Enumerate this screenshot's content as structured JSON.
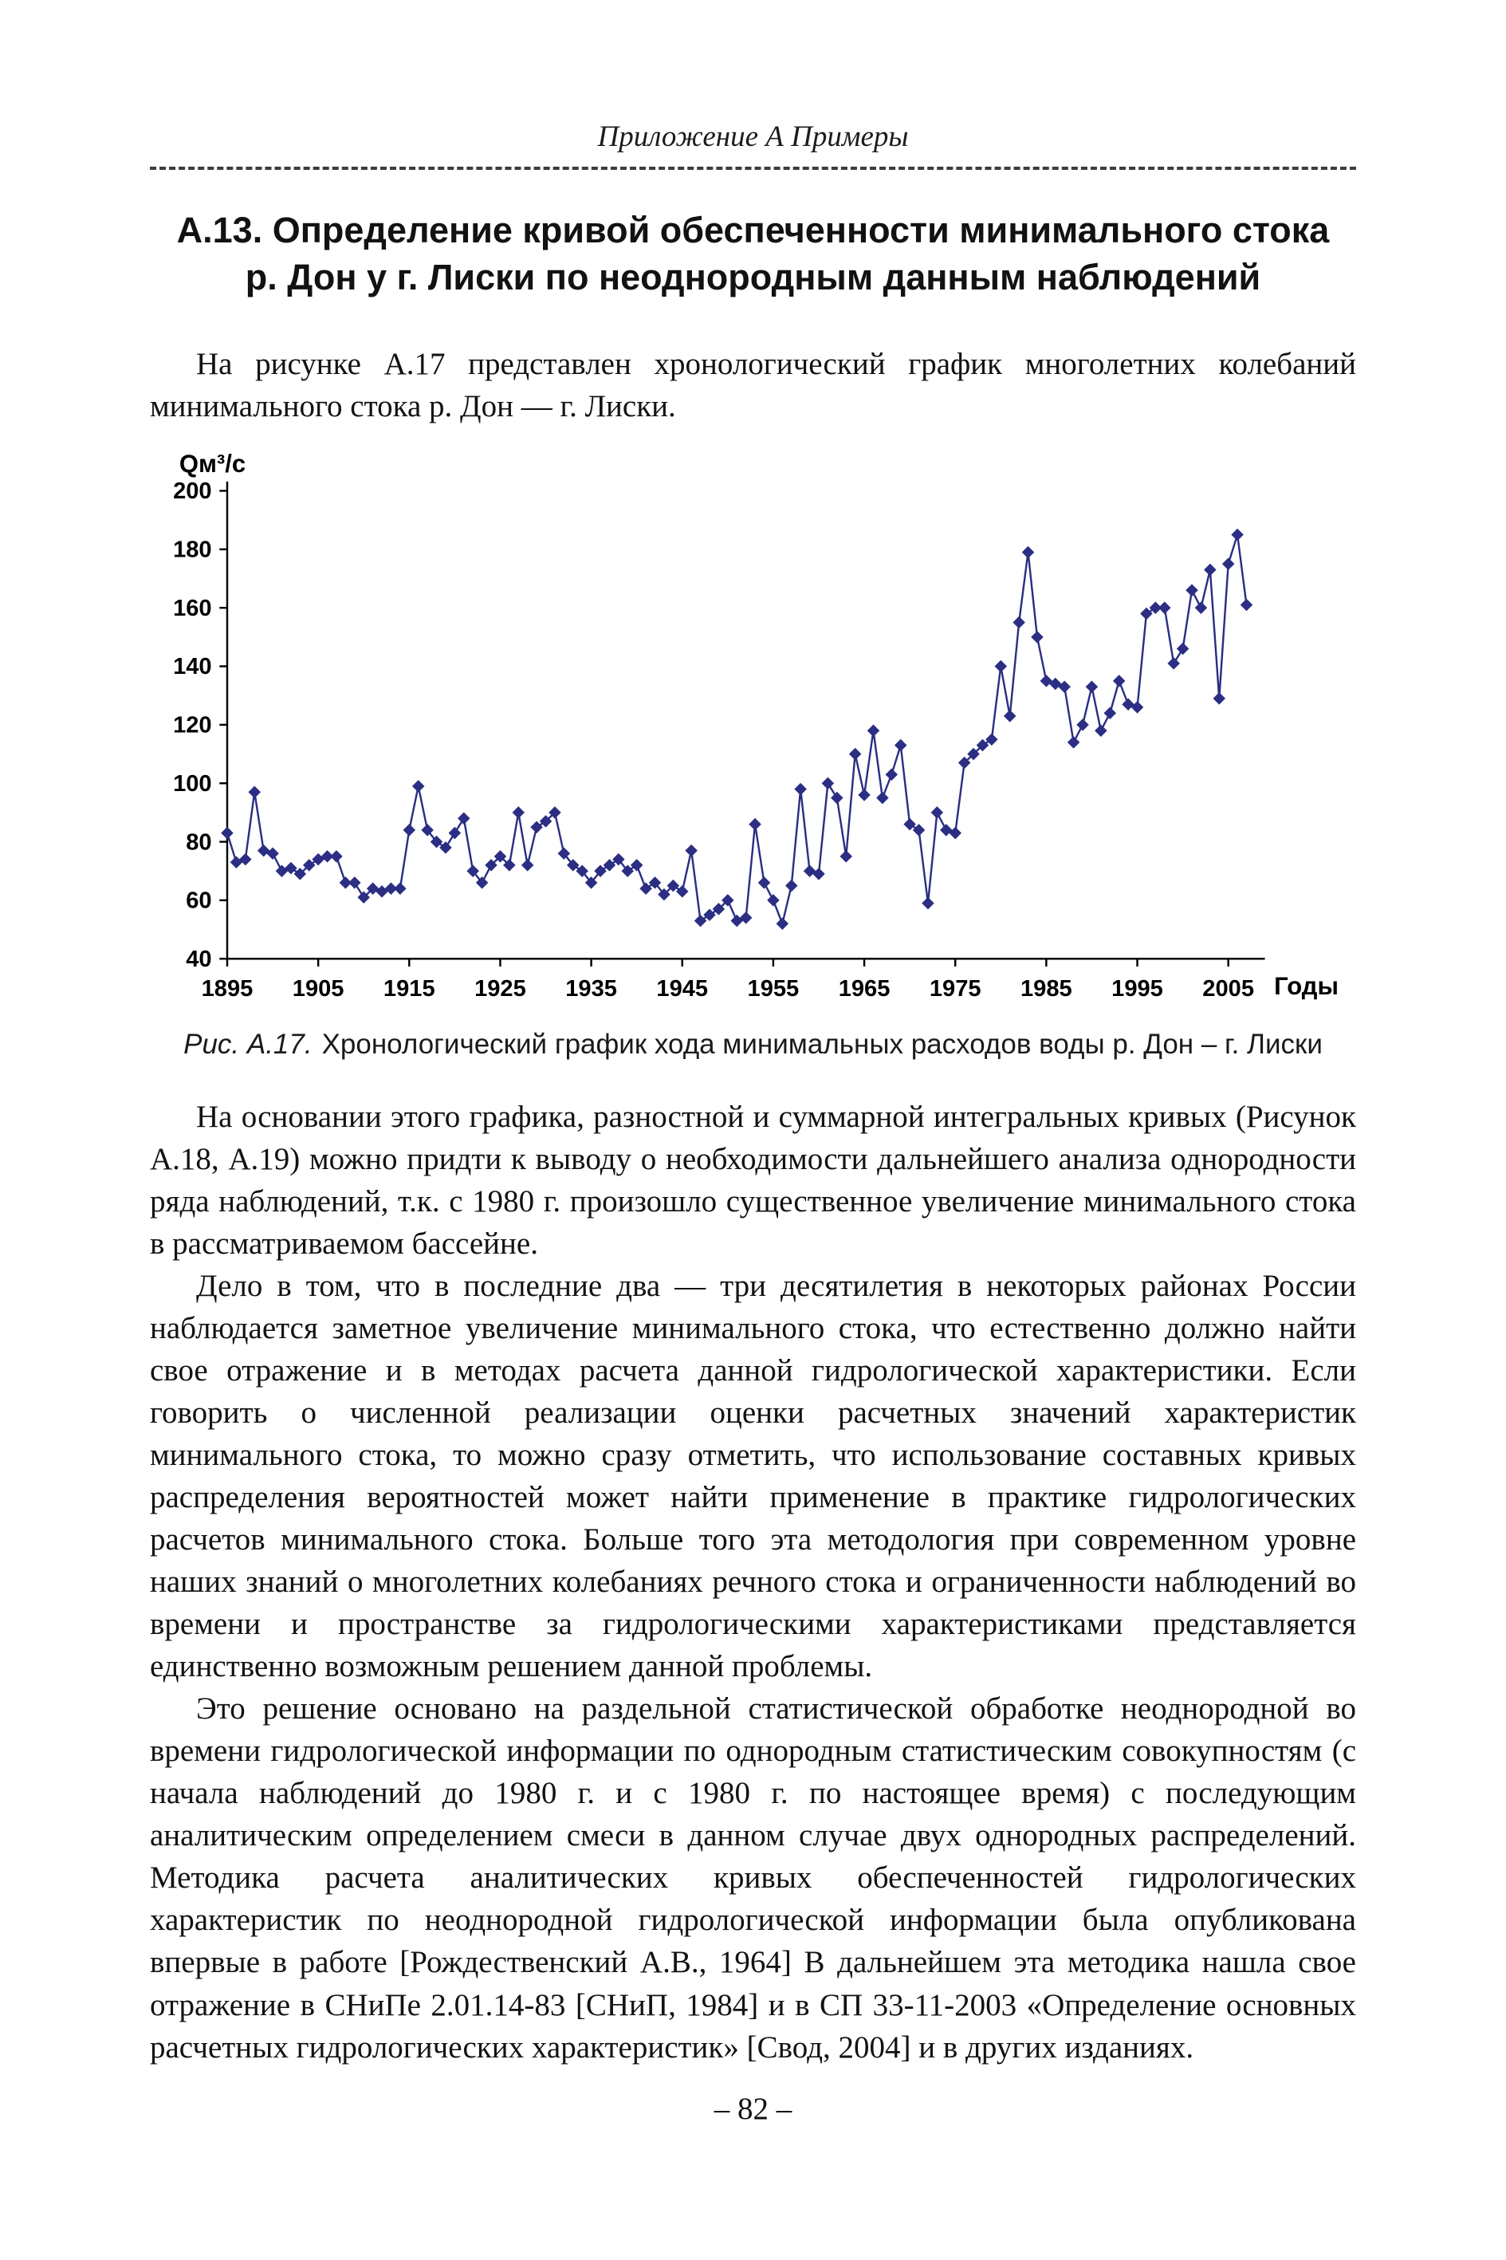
{
  "page": {
    "header": "Приложение А Примеры",
    "title_line1": "А.13. Определение кривой обеспеченности минимального стока",
    "title_line2": "р. Дон у г. Лиски по неоднородным данным наблюдений",
    "paragraph_intro": "На рисунке А.17 представлен хронологический график многолетних колебаний минимального стока р. Дон — г. Лиски.",
    "figure_caption_label": "Рис. А.17.",
    "figure_caption_text": "Хронологический график хода минимальных расходов воды р. Дон – г. Лиски",
    "paragraphs": [
      "На основании этого графика, разностной и суммарной интегральных кривых (Рисунок А.18, А.19) можно придти к выводу о необходимости дальнейшего анализа однородности ряда наблюдений, т.к. с 1980 г. произошло существенное увеличение минимального стока в рассматриваемом бассейне.",
      "Дело в том, что в последние два — три десятилетия в некоторых районах России наблюдается заметное увеличение минимального стока, что естественно должно найти свое отражение и в методах расчета данной гидрологической характеристики. Если говорить о численной реализации оценки расчетных значений характеристик минимального стока, то можно сразу отметить, что использование составных кривых распределения вероятностей может найти применение в практике гидрологических расчетов минимального стока. Больше того эта методология при современном уровне наших знаний о многолетних колебаниях речного стока и ограниченности наблюдений во времени и пространстве за гидрологическими характеристиками представляется единственно возможным решением данной проблемы.",
      "Это решение основано на раздельной статистической обработке неоднородной во времени гидрологической информации по однородным статистическим совокупностям (с начала наблюдений до 1980 г. и с 1980 г. по настоящее время) с последующим аналитическим определением смеси в данном случае двух однородных распределений. Методика расчета аналитических кривых обеспеченностей гидрологических характеристик по неоднородной гидрологической информации была опубликована впервые в работе [Рождественский А.В., 1964] В дальнейшем эта методика нашла свое отражение в СНиПе 2.01.14-83 [СНиП, 1984] и в СП 33-11-2003 «Определение основных расчетных гидрологических характеристик» [Свод, 2004] и в других изданиях."
    ],
    "page_number": "– 82 –"
  },
  "chart_data": {
    "type": "line",
    "title": "",
    "ylabel": "Qм³/с",
    "xlabel": "Годы",
    "ylim": [
      40,
      200
    ],
    "xlim": [
      1895,
      2008
    ],
    "yticks": [
      40,
      60,
      80,
      100,
      120,
      140,
      160,
      180,
      200
    ],
    "xticks": [
      1895,
      1905,
      1915,
      1925,
      1935,
      1945,
      1955,
      1965,
      1975,
      1985,
      1995,
      2005
    ],
    "grid": false,
    "legend": "none",
    "marker": "diamond",
    "color": "#2b2e83",
    "series_name": "Минимальные расходы воды р. Дон – г. Лиски",
    "x": [
      1895,
      1896,
      1897,
      1898,
      1899,
      1900,
      1901,
      1902,
      1903,
      1904,
      1905,
      1906,
      1907,
      1908,
      1909,
      1910,
      1911,
      1912,
      1913,
      1914,
      1915,
      1916,
      1917,
      1918,
      1919,
      1920,
      1921,
      1922,
      1923,
      1924,
      1925,
      1926,
      1927,
      1928,
      1929,
      1930,
      1931,
      1932,
      1933,
      1934,
      1935,
      1936,
      1937,
      1938,
      1939,
      1940,
      1941,
      1942,
      1943,
      1944,
      1945,
      1946,
      1947,
      1948,
      1949,
      1950,
      1951,
      1952,
      1953,
      1954,
      1955,
      1956,
      1957,
      1958,
      1959,
      1960,
      1961,
      1962,
      1963,
      1964,
      1965,
      1966,
      1967,
      1968,
      1969,
      1970,
      1971,
      1972,
      1973,
      1974,
      1975,
      1976,
      1977,
      1978,
      1979,
      1980,
      1981,
      1982,
      1983,
      1984,
      1985,
      1986,
      1987,
      1988,
      1989,
      1990,
      1991,
      1992,
      1993,
      1994,
      1995,
      1996,
      1997,
      1998,
      1999,
      2000,
      2001,
      2002,
      2003,
      2004,
      2005,
      2006,
      2007
    ],
    "y": [
      83,
      73,
      74,
      97,
      77,
      76,
      70,
      71,
      69,
      72,
      74,
      75,
      75,
      66,
      66,
      61,
      64,
      63,
      64,
      64,
      84,
      99,
      84,
      80,
      78,
      83,
      88,
      70,
      66,
      72,
      75,
      72,
      90,
      72,
      85,
      87,
      90,
      76,
      72,
      70,
      66,
      70,
      72,
      74,
      70,
      72,
      64,
      66,
      62,
      65,
      63,
      77,
      53,
      55,
      57,
      60,
      53,
      54,
      86,
      66,
      60,
      52,
      65,
      98,
      70,
      69,
      100,
      95,
      75,
      110,
      96,
      118,
      95,
      103,
      113,
      86,
      84,
      59,
      90,
      84,
      83,
      107,
      110,
      113,
      115,
      140,
      123,
      155,
      179,
      150,
      135,
      134,
      133,
      114,
      120,
      133,
      118,
      124,
      135,
      127,
      126,
      158,
      160,
      160,
      141,
      146,
      166,
      160,
      173,
      129,
      175,
      185,
      161
    ]
  }
}
